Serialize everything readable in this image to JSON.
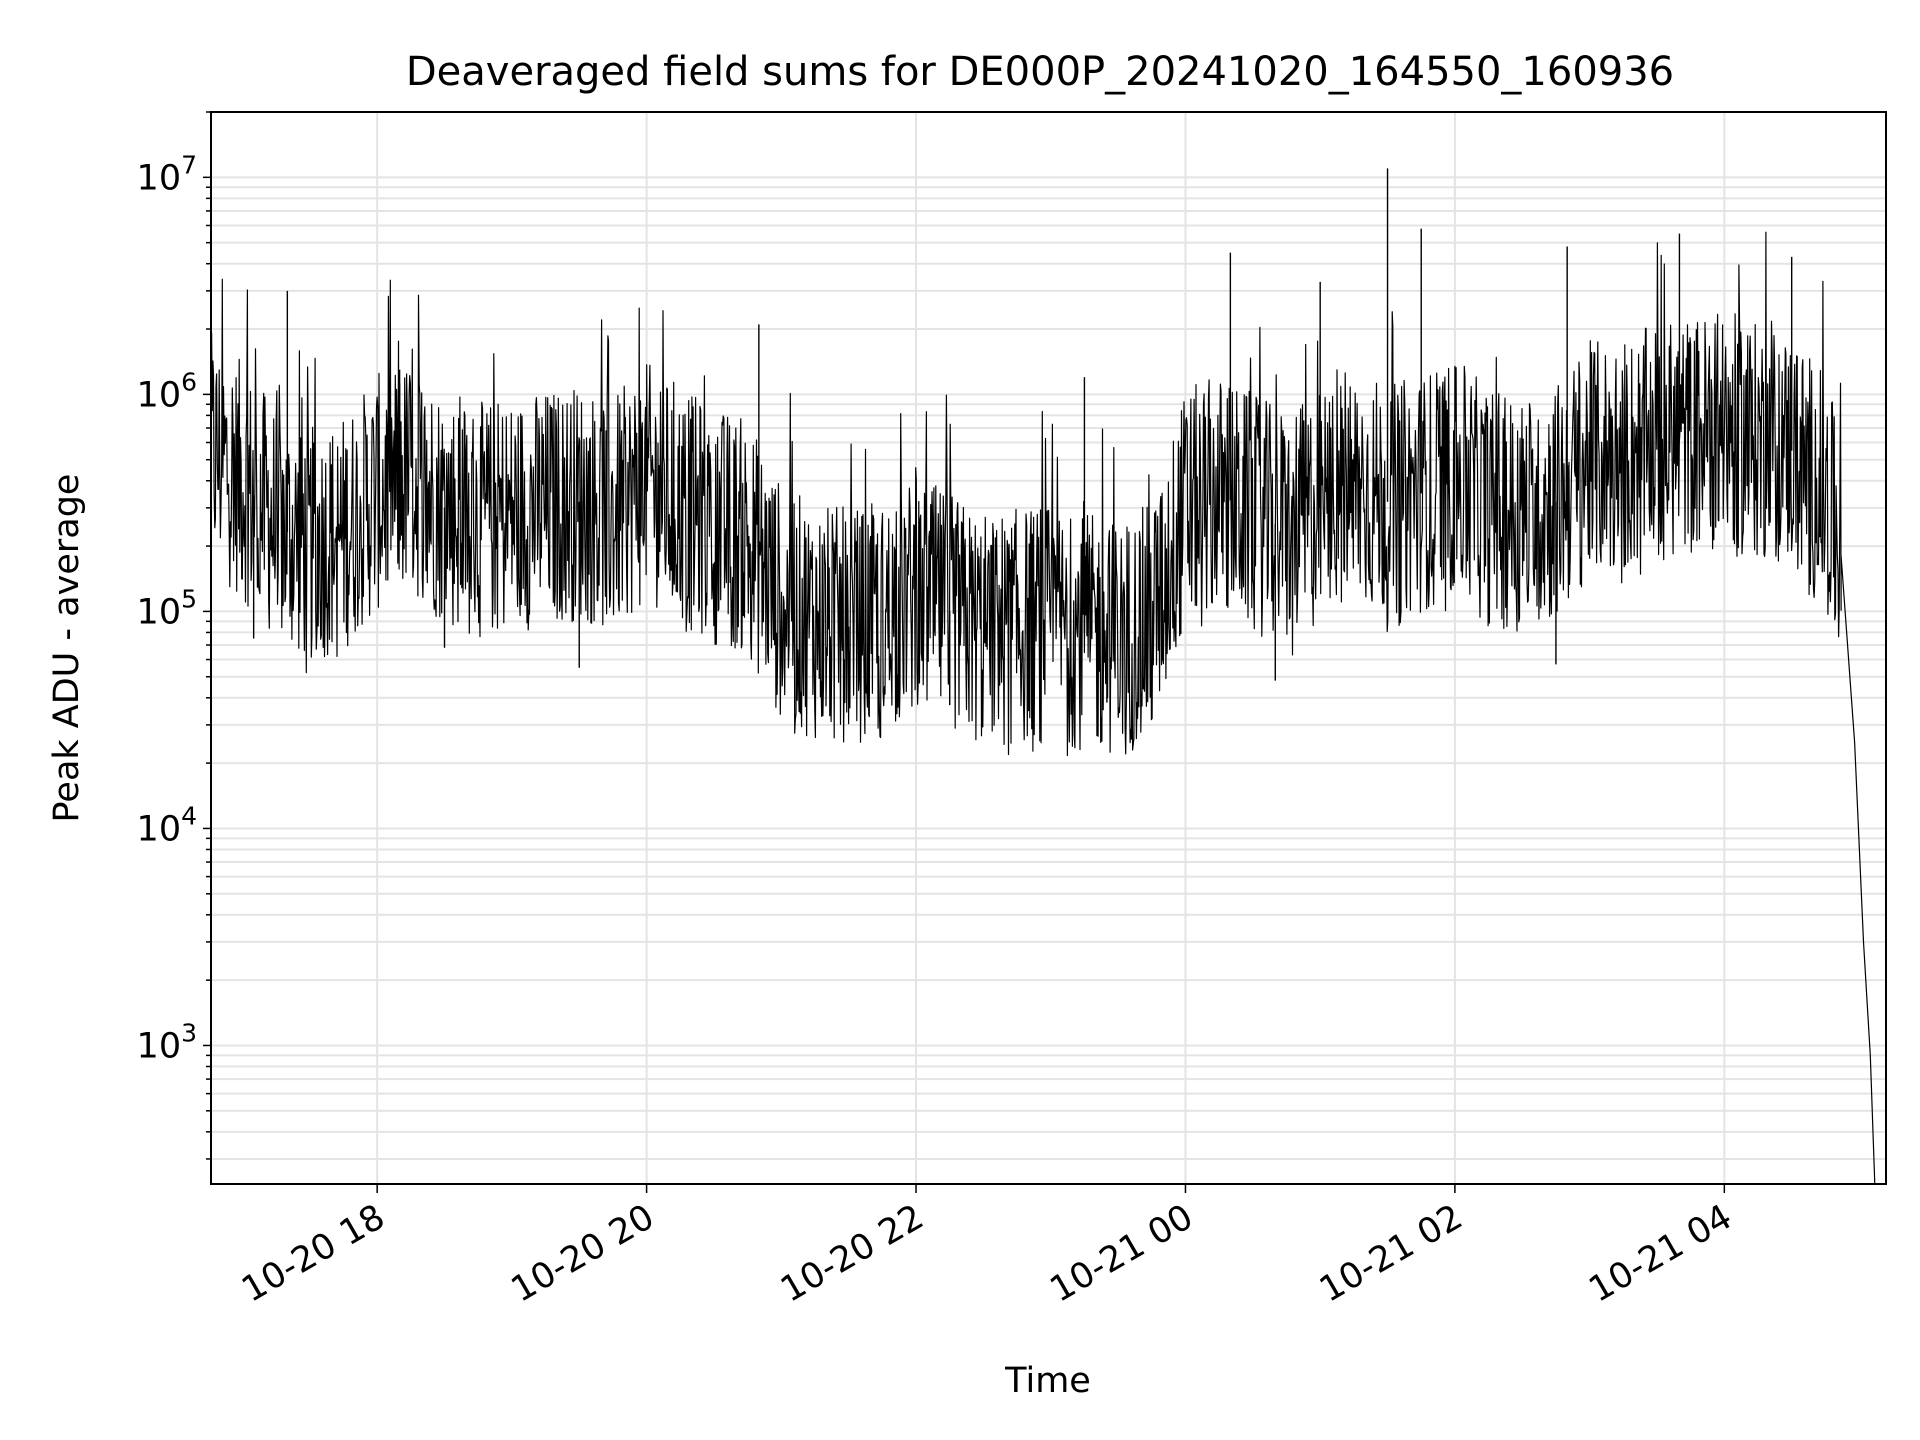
{
  "chart_data": {
    "type": "line",
    "title": "Deaveraged field sums for DE000P_20241020_164550_160936",
    "xlabel": "Time",
    "ylabel": "Peak ADU - average",
    "yscale": "log",
    "ylim": [
      230,
      20000000
    ],
    "xlim": [
      "2024-10-20 16:46",
      "2024-10-21 05:12"
    ],
    "grid": true,
    "legend": "none",
    "line_color": "#000000",
    "x_ticks": [
      {
        "t": "2024-10-20 18:00",
        "label": "10-20 18"
      },
      {
        "t": "2024-10-20 20:00",
        "label": "10-20 20"
      },
      {
        "t": "2024-10-20 22:00",
        "label": "10-20 22"
      },
      {
        "t": "2024-10-21 00:00",
        "label": "10-21 00"
      },
      {
        "t": "2024-10-21 02:00",
        "label": "10-21 02"
      },
      {
        "t": "2024-10-21 04:00",
        "label": "10-21 04"
      }
    ],
    "y_ticks": [
      {
        "value": 1000,
        "base": "10",
        "exp": "3"
      },
      {
        "value": 10000,
        "base": "10",
        "exp": "4"
      },
      {
        "value": 100000,
        "base": "10",
        "exp": "5"
      },
      {
        "value": 1000000,
        "base": "10",
        "exp": "6"
      },
      {
        "value": 10000000,
        "base": "10",
        "exp": "7"
      }
    ],
    "series": [
      {
        "x": [
          "2024-10-20 16:46",
          "2024-10-20 17:00",
          "2024-10-20 17:15",
          "2024-10-20 17:30",
          "2024-10-20 17:45",
          "2024-10-20 18:00",
          "2024-10-20 18:15",
          "2024-10-20 18:30",
          "2024-10-20 18:45",
          "2024-10-20 19:00",
          "2024-10-20 19:15",
          "2024-10-20 19:30",
          "2024-10-20 19:45",
          "2024-10-20 20:00",
          "2024-10-20 20:15",
          "2024-10-20 20:30",
          "2024-10-20 20:45",
          "2024-10-20 21:00",
          "2024-10-20 21:15",
          "2024-10-20 21:30",
          "2024-10-20 21:45",
          "2024-10-20 22:00",
          "2024-10-20 22:15",
          "2024-10-20 22:30",
          "2024-10-20 22:45",
          "2024-10-20 23:00",
          "2024-10-20 23:15",
          "2024-10-20 23:30",
          "2024-10-20 23:45",
          "2024-10-21 00:00",
          "2024-10-21 00:15",
          "2024-10-21 00:30",
          "2024-10-21 00:45",
          "2024-10-21 01:00",
          "2024-10-21 01:15",
          "2024-10-21 01:30",
          "2024-10-21 01:45",
          "2024-10-21 02:00",
          "2024-10-21 02:15",
          "2024-10-21 02:30",
          "2024-10-21 02:45",
          "2024-10-21 03:00",
          "2024-10-21 03:15",
          "2024-10-21 03:30",
          "2024-10-21 03:45",
          "2024-10-21 04:00",
          "2024-10-21 04:15",
          "2024-10-21 04:30",
          "2024-10-21 04:45",
          "2024-10-21 04:52",
          "2024-10-21 04:58",
          "2024-10-21 05:02",
          "2024-10-21 05:05",
          "2024-10-21 05:07"
        ],
        "y": [
          550000,
          400000,
          250000,
          200000,
          230000,
          350000,
          420000,
          300000,
          260000,
          280000,
          300000,
          320000,
          270000,
          400000,
          300000,
          250000,
          220000,
          110000,
          90000,
          85000,
          90000,
          120000,
          100000,
          80000,
          85000,
          90000,
          80000,
          75000,
          90000,
          300000,
          350000,
          280000,
          240000,
          300000,
          380000,
          320000,
          350000,
          420000,
          300000,
          280000,
          320000,
          500000,
          520000,
          600000,
          650000,
          700000,
          600000,
          550000,
          350000,
          180000,
          25000,
          3000,
          900,
          300
        ],
        "peaks": [
          [
            "2024-10-20 17:20",
            3000000
          ],
          [
            "2024-10-20 18:10",
            1300000
          ],
          [
            "2024-10-20 20:50",
            2100000
          ],
          [
            "2024-10-20 23:15",
            1200000
          ],
          [
            "2024-10-21 00:20",
            4500000
          ],
          [
            "2024-10-21 01:00",
            3300000
          ],
          [
            "2024-10-21 01:30",
            11000000
          ],
          [
            "2024-10-21 01:45",
            5800000
          ],
          [
            "2024-10-21 02:50",
            4800000
          ],
          [
            "2024-10-21 03:40",
            5500000
          ],
          [
            "2024-10-21 04:30",
            4300000
          ]
        ],
        "dips": [
          [
            "2024-10-20 17:05",
            75000
          ],
          [
            "2024-10-20 18:30",
            68000
          ],
          [
            "2024-10-20 19:30",
            55000
          ],
          [
            "2024-10-20 21:30",
            40000
          ],
          [
            "2024-10-20 22:15",
            37000
          ],
          [
            "2024-10-20 23:25",
            38000
          ],
          [
            "2024-10-21 00:40",
            48000
          ],
          [
            "2024-10-21 02:45",
            57000
          ]
        ]
      }
    ]
  }
}
